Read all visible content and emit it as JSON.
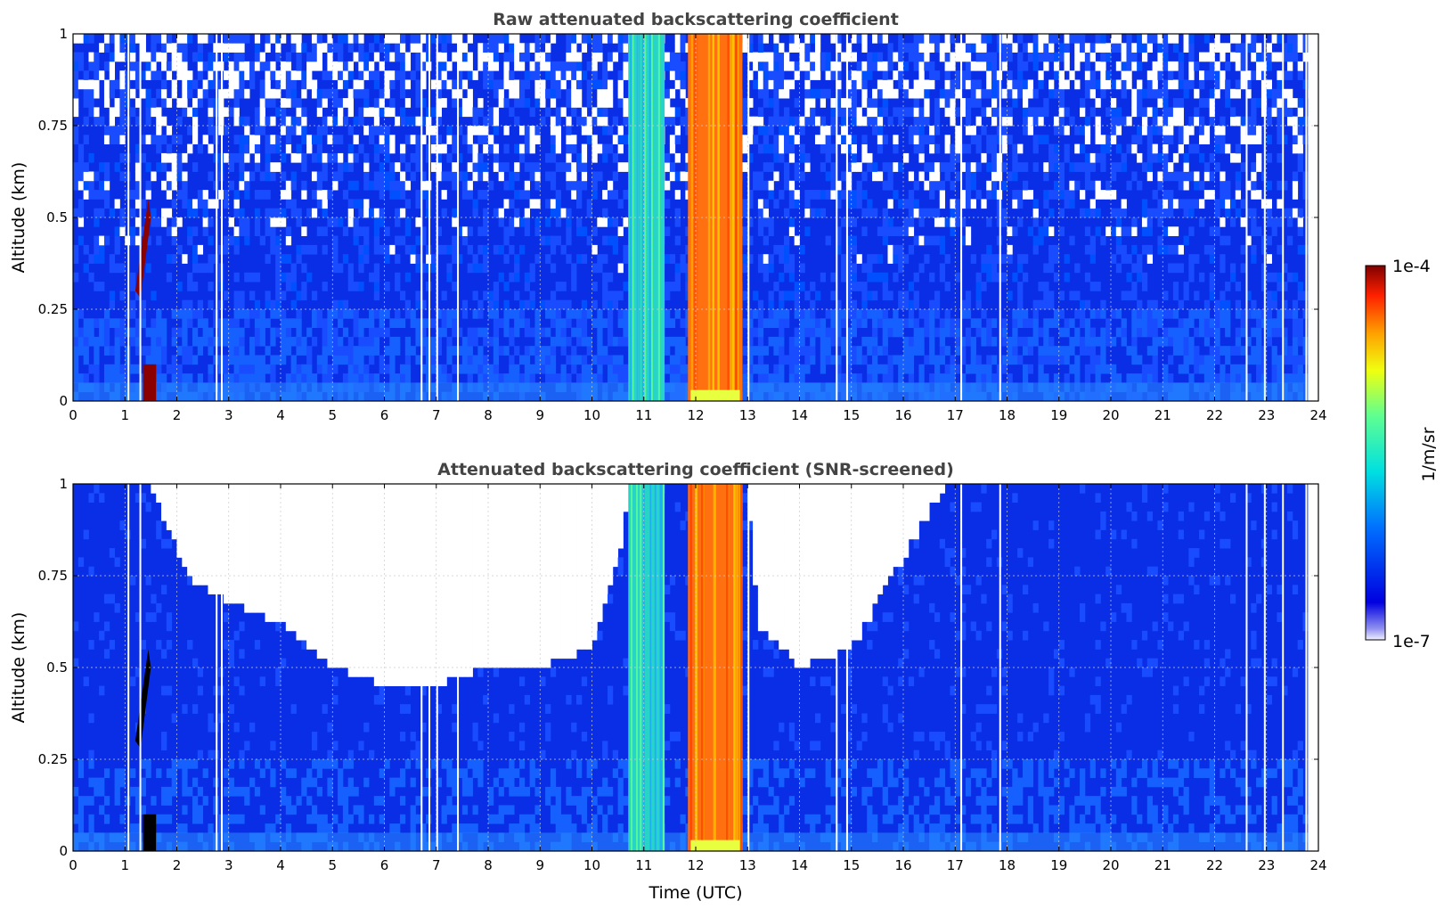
{
  "chart_data": [
    {
      "type": "heatmap",
      "title": "Raw attenuated backscattering coefficient",
      "xlabel": "",
      "ylabel": "Altitude (km)",
      "xlim": [
        0,
        24
      ],
      "ylim": [
        0,
        1
      ],
      "xticks": [
        "0",
        "1",
        "2",
        "3",
        "4",
        "5",
        "6",
        "7",
        "8",
        "9",
        "10",
        "11",
        "12",
        "13",
        "14",
        "15",
        "16",
        "17",
        "18",
        "19",
        "20",
        "21",
        "22",
        "23",
        "24"
      ],
      "yticks": [
        "0",
        "0.25",
        "0.5",
        "0.75",
        "1"
      ],
      "grid": true,
      "features": [
        {
          "kind": "cloud",
          "x": [
            11.85,
            12.9
          ],
          "y": [
            0,
            1
          ],
          "level": "high"
        },
        {
          "kind": "aerosol-column",
          "x": [
            10.7,
            11.4
          ],
          "y": [
            0,
            1
          ],
          "level": "medium"
        },
        {
          "kind": "plume",
          "x": [
            1.15,
            1.6
          ],
          "y": [
            0,
            0.55
          ],
          "level": "very high"
        },
        {
          "kind": "surface-layer",
          "x": [
            0,
            24
          ],
          "y": [
            0,
            0.05
          ],
          "level": "medium-low"
        }
      ]
    },
    {
      "type": "heatmap",
      "title": "Attenuated backscattering coefficient (SNR-screened)",
      "xlabel": "Time (UTC)",
      "ylabel": "Altitude (km)",
      "xlim": [
        0,
        24
      ],
      "ylim": [
        0,
        1
      ],
      "xticks": [
        "0",
        "1",
        "2",
        "3",
        "4",
        "5",
        "6",
        "7",
        "8",
        "9",
        "10",
        "11",
        "12",
        "13",
        "14",
        "15",
        "16",
        "17",
        "18",
        "19",
        "20",
        "21",
        "22",
        "23",
        "24"
      ],
      "yticks": [
        "0",
        "0.25",
        "0.5",
        "0.75",
        "1"
      ],
      "grid": true,
      "screened_top_boundary": [
        {
          "x": 0,
          "y": 1.0
        },
        {
          "x": 1.5,
          "y": 1.0
        },
        {
          "x": 2.2,
          "y": 0.75
        },
        {
          "x": 3,
          "y": 0.68
        },
        {
          "x": 4,
          "y": 0.62
        },
        {
          "x": 5,
          "y": 0.5
        },
        {
          "x": 6,
          "y": 0.45
        },
        {
          "x": 7,
          "y": 0.45
        },
        {
          "x": 8,
          "y": 0.5
        },
        {
          "x": 9,
          "y": 0.5
        },
        {
          "x": 10,
          "y": 0.55
        },
        {
          "x": 10.6,
          "y": 0.85
        },
        {
          "x": 10.7,
          "y": 1.0
        },
        {
          "x": 13,
          "y": 1.0
        },
        {
          "x": 13.2,
          "y": 0.62
        },
        {
          "x": 14,
          "y": 0.5
        },
        {
          "x": 15,
          "y": 0.55
        },
        {
          "x": 16,
          "y": 0.8
        },
        {
          "x": 16.8,
          "y": 1.0
        },
        {
          "x": 24,
          "y": 1.0
        }
      ]
    }
  ],
  "colorbar": {
    "label": "1/m/sr",
    "max_label": "1e-4",
    "min_label": "1e-7",
    "colormap": "jet",
    "scale": "log"
  },
  "colors": {
    "background_blue": "#0a2ee6",
    "aerosol_cyan": "#28d4c8",
    "cloud_orange": "#ff7010",
    "plume_dark_red": "#8b0000",
    "screened_black": "#000000"
  }
}
